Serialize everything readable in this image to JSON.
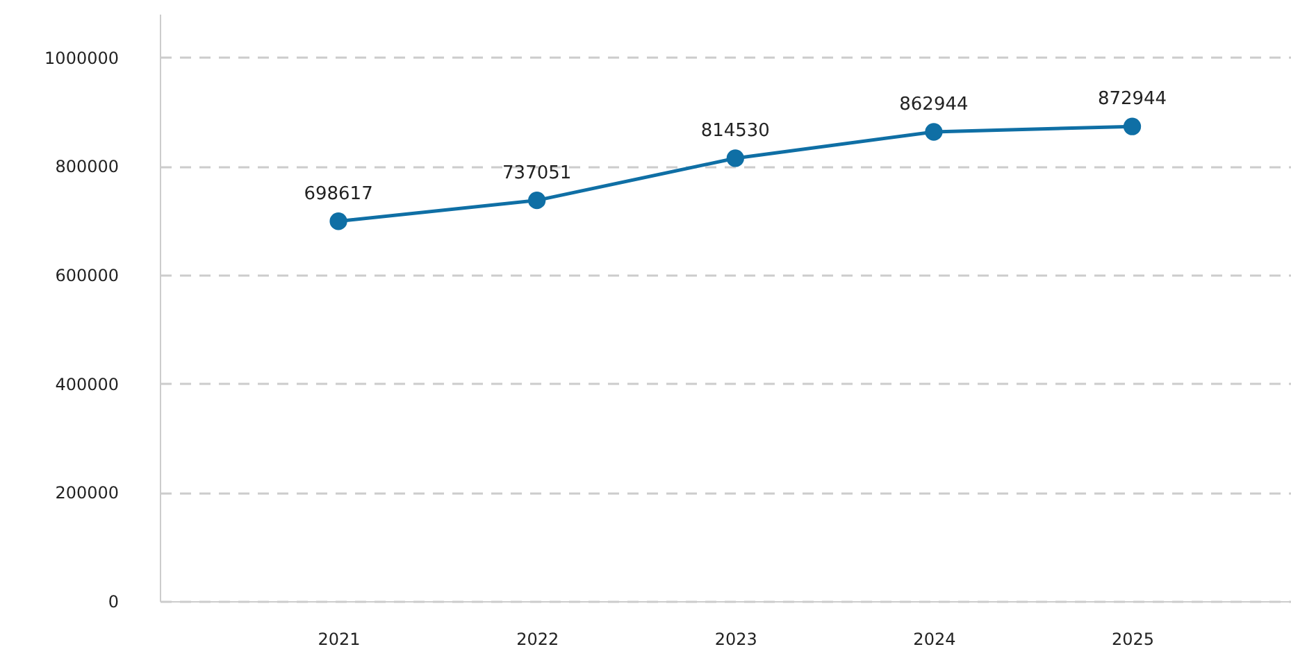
{
  "chart_data": {
    "type": "line",
    "categories": [
      "2021",
      "2022",
      "2023",
      "2024",
      "2025"
    ],
    "series": [
      {
        "color": "#0f6fa5",
        "values": [
          698617,
          737051,
          814530,
          862944,
          872944
        ]
      }
    ],
    "ylim": [
      0,
      1080000
    ],
    "yticks": [
      0,
      200000,
      400000,
      600000,
      800000,
      1000000
    ],
    "grid": "y",
    "marker": "circle",
    "line_style": "solid",
    "data_labels": true
  }
}
